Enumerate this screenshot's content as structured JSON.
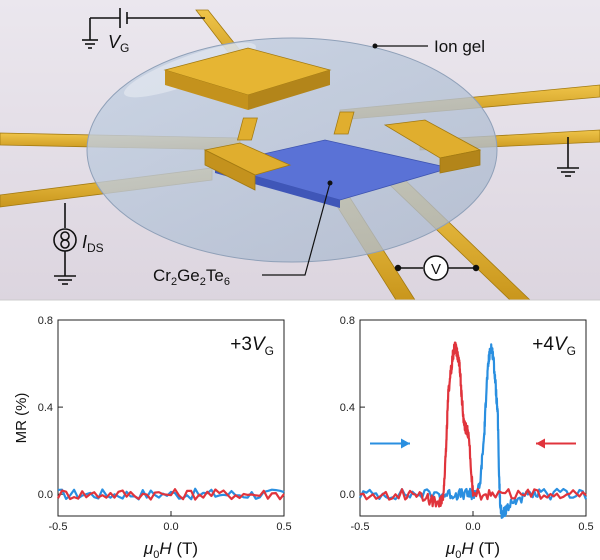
{
  "device": {
    "gate_label": "V",
    "gate_sub": "G",
    "ion_gel_label": "Ion gel",
    "current_label": "I",
    "current_sub": "DS",
    "voltmeter_label": "V",
    "material_cr": "Cr",
    "material_sub1": "2",
    "material_ge": "Ge",
    "material_sub2": "2",
    "material_te": "Te",
    "material_sub3": "6",
    "colors": {
      "gold": "#d9a927",
      "gel": "#b9c6d9",
      "channel": "#5a72d6",
      "background": "#e6e1ea"
    }
  },
  "chart_data": [
    {
      "type": "line",
      "title": "",
      "annotation_prefix": "+3",
      "annotation_var": "V",
      "annotation_sub": "G",
      "xlabel_mu": "μ",
      "xlabel_sub": "0",
      "xlabel_var": "H",
      "xlabel_unit": " (T)",
      "ylabel": "MR (%)",
      "xlim": [
        -0.5,
        0.5
      ],
      "ylim": [
        -0.1,
        0.8
      ],
      "xticks": [
        "-0.5",
        "0.0",
        "0.5"
      ],
      "yticks": [
        "0.0",
        "0.4",
        "0.8"
      ],
      "series": [
        {
          "color": "#2a8fe0",
          "x": [
            -0.5,
            -0.25,
            0.0,
            0.25,
            0.5
          ],
          "y": [
            0.0,
            0.0,
            0.0,
            0.0,
            0.0
          ]
        },
        {
          "color": "#e0343c",
          "x": [
            -0.5,
            -0.25,
            0.0,
            0.25,
            0.5
          ],
          "y": [
            0.0,
            0.0,
            0.0,
            0.0,
            0.0
          ]
        }
      ]
    },
    {
      "type": "line",
      "title": "",
      "annotation_prefix": "+4",
      "annotation_var": "V",
      "annotation_sub": "G",
      "xlabel_mu": "μ",
      "xlabel_sub": "0",
      "xlabel_var": "H",
      "xlabel_unit": " (T)",
      "ylabel": "",
      "xlim": [
        -0.5,
        0.5
      ],
      "ylim": [
        -0.1,
        0.8
      ],
      "xticks": [
        "-0.5",
        "0.0",
        "0.5"
      ],
      "yticks": [
        "0.0",
        "0.4",
        "0.8"
      ],
      "series": [
        {
          "color": "#2a8fe0",
          "direction": "right",
          "x": [
            -0.5,
            -0.3,
            -0.15,
            -0.08,
            -0.02,
            0.0,
            0.03,
            0.05,
            0.06,
            0.07,
            0.08,
            0.09,
            0.1,
            0.11,
            0.115,
            0.12,
            0.13,
            0.15,
            0.2,
            0.3,
            0.5
          ],
          "y": [
            0.0,
            0.0,
            0.0,
            0.0,
            0.0,
            0.0,
            0.03,
            0.28,
            0.5,
            0.62,
            0.68,
            0.63,
            0.5,
            0.35,
            0.1,
            -0.05,
            -0.1,
            -0.06,
            -0.02,
            0.0,
            0.0
          ]
        },
        {
          "color": "#e0343c",
          "direction": "left",
          "x": [
            0.5,
            0.3,
            0.1,
            0.0,
            -0.02,
            -0.03,
            -0.04,
            -0.05,
            -0.06,
            -0.07,
            -0.08,
            -0.09,
            -0.1,
            -0.11,
            -0.12,
            -0.13,
            -0.15,
            -0.2,
            -0.3,
            -0.5
          ],
          "y": [
            0.0,
            0.0,
            0.0,
            0.0,
            0.28,
            0.3,
            0.32,
            0.45,
            0.6,
            0.65,
            0.68,
            0.63,
            0.55,
            0.45,
            0.2,
            0.0,
            -0.05,
            -0.02,
            0.0,
            0.0
          ]
        }
      ]
    }
  ]
}
